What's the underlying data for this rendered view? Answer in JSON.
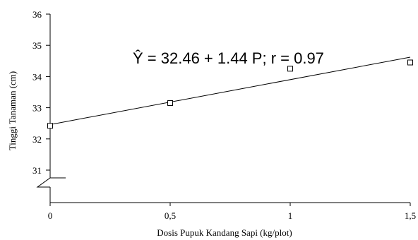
{
  "chart_data": {
    "type": "scatter",
    "title": "",
    "xlabel": "Dosis Pupuk Kandang Sapi (kg/plot)",
    "ylabel": "Tinggi Tanaman (cm)",
    "x_ticks": [
      "0",
      "0,5",
      "1",
      "1,5"
    ],
    "x_tick_values": [
      0,
      0.5,
      1,
      1.5
    ],
    "y_ticks": [
      "31",
      "32",
      "33",
      "34",
      "35",
      "36"
    ],
    "y_tick_values": [
      31,
      32,
      33,
      34,
      35,
      36
    ],
    "xlim": [
      0,
      1.5
    ],
    "ylim": [
      30,
      36
    ],
    "y_axis_break": true,
    "grid": false,
    "points": [
      {
        "x": 0,
        "y": 32.42
      },
      {
        "x": 0.5,
        "y": 33.15
      },
      {
        "x": 1,
        "y": 34.25
      },
      {
        "x": 1.5,
        "y": 34.45
      }
    ],
    "trendline": {
      "intercept": 32.46,
      "slope": 1.44
    },
    "annotation": "Ŷ = 32.46 + 1.44 P; r = 0.97"
  }
}
